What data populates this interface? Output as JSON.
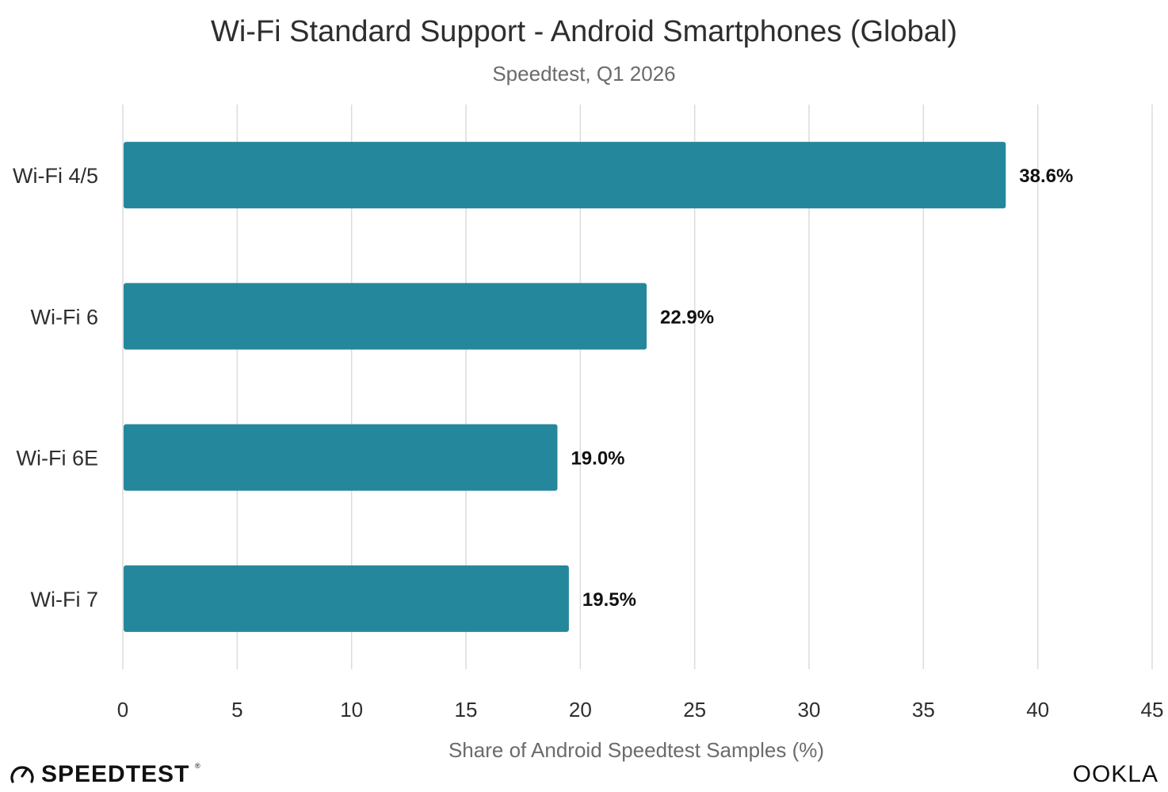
{
  "chart_data": {
    "type": "bar",
    "orientation": "horizontal",
    "title": "Wi-Fi Standard Support - Android Smartphones (Global)",
    "subtitle": "Speedtest, Q1 2026",
    "xlabel": "Share of Android Speedtest Samples (%)",
    "ylabel": "",
    "xlim": [
      0,
      45
    ],
    "xticks": [
      "0",
      "5",
      "10",
      "15",
      "20",
      "25",
      "30",
      "35",
      "40",
      "45"
    ],
    "tick_values": [
      0,
      5,
      10,
      15,
      20,
      25,
      30,
      35,
      40,
      45
    ],
    "categories": [
      "Wi-Fi 4/5",
      "Wi-Fi 6",
      "Wi-Fi 6E",
      "Wi-Fi 7"
    ],
    "values": [
      38.6,
      22.9,
      19.0,
      19.5
    ],
    "value_labels": [
      "38.6%",
      "22.9%",
      "19.0%",
      "19.5%"
    ],
    "bar_color": "#25879c",
    "grid": "vertical"
  },
  "branding": {
    "left_logo": "SPEEDTEST",
    "right_logo": "OOKLA",
    "speedometer_icon": "speedometer-icon"
  }
}
